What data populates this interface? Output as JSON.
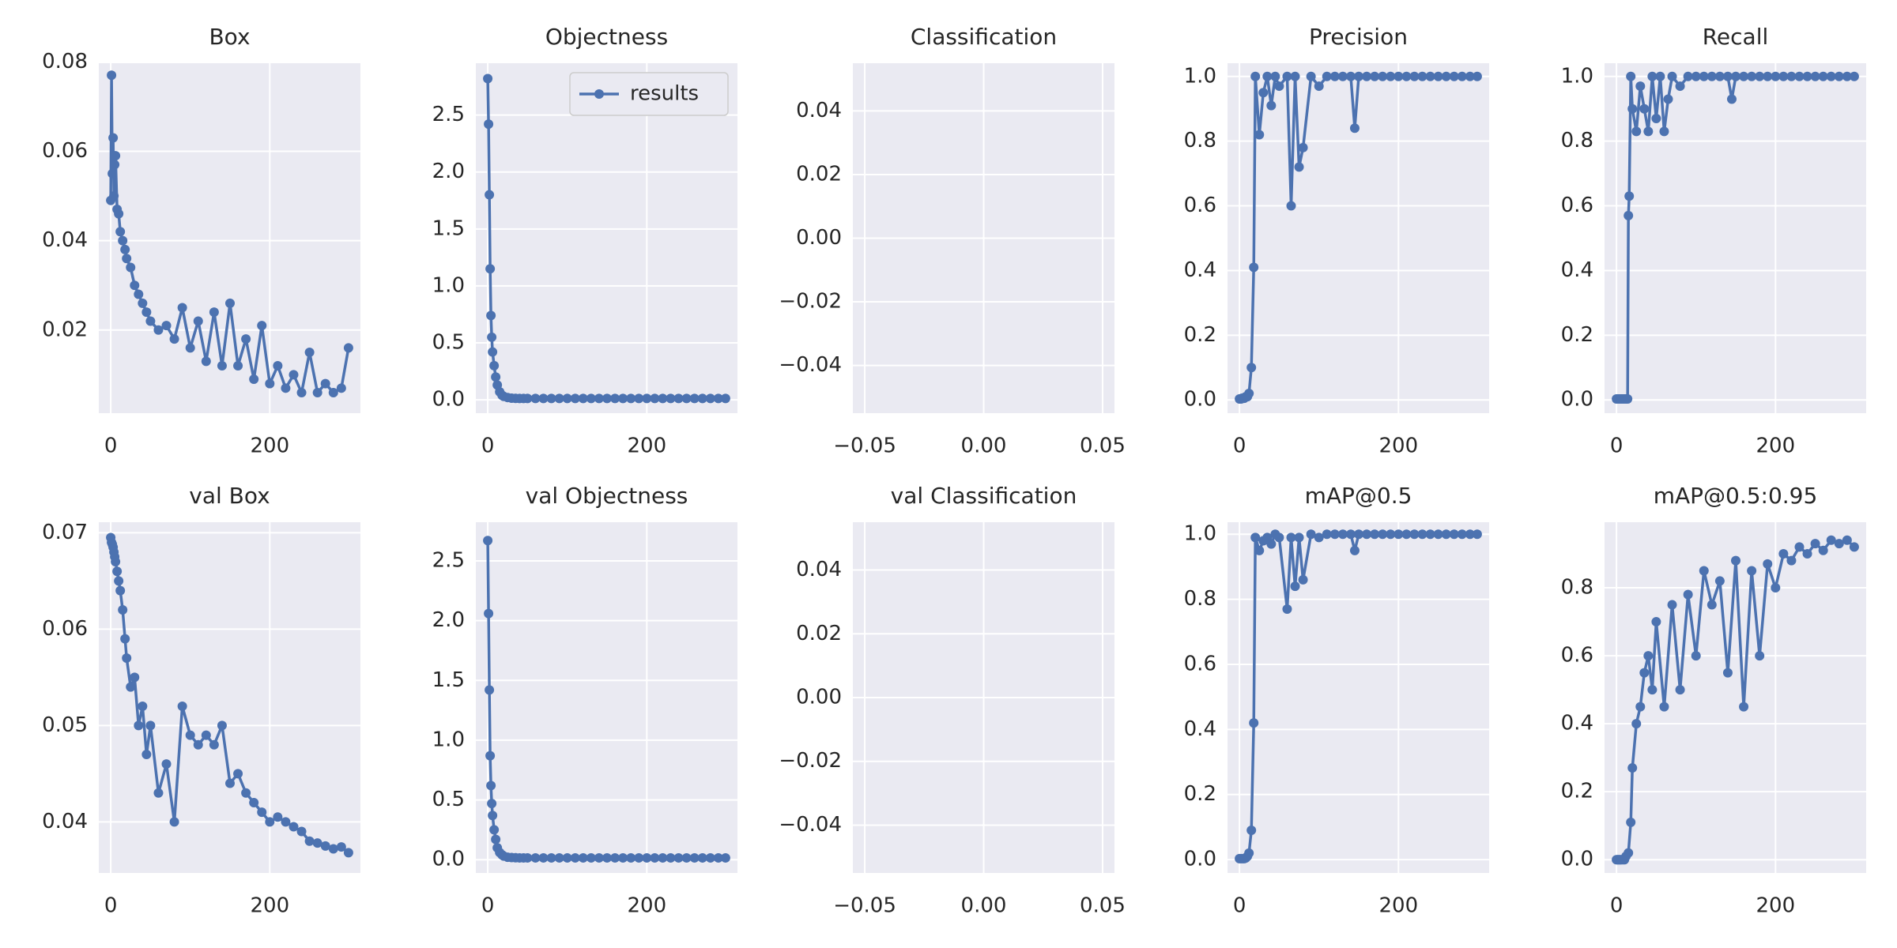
{
  "chart_data": [
    {
      "type": "line",
      "title": "Box",
      "color": "#4c72b0",
      "grid": true,
      "x": [
        0,
        1,
        2,
        3,
        4,
        5,
        6,
        8,
        10,
        12,
        15,
        18,
        20,
        25,
        30,
        35,
        40,
        45,
        50,
        60,
        70,
        80,
        90,
        100,
        110,
        120,
        130,
        140,
        150,
        160,
        170,
        180,
        190,
        200,
        210,
        220,
        230,
        240,
        250,
        260,
        270,
        280,
        290,
        299
      ],
      "values": [
        0.049,
        0.077,
        0.055,
        0.063,
        0.05,
        0.057,
        0.059,
        0.047,
        0.046,
        0.042,
        0.04,
        0.038,
        0.036,
        0.034,
        0.03,
        0.028,
        0.026,
        0.024,
        0.022,
        0.02,
        0.021,
        0.018,
        0.025,
        0.016,
        0.022,
        0.013,
        0.024,
        0.012,
        0.026,
        0.012,
        0.018,
        0.009,
        0.021,
        0.008,
        0.012,
        0.007,
        0.01,
        0.006,
        0.015,
        0.006,
        0.008,
        0.006,
        0.007,
        0.016
      ],
      "xlim": [
        -15,
        314
      ],
      "xticks": [
        0,
        200
      ],
      "ylim": [
        0.0014,
        0.0797
      ],
      "yticks": [
        0.02,
        0.04,
        0.06,
        0.08
      ]
    },
    {
      "type": "line",
      "title": "Objectness",
      "color": "#4c72b0",
      "grid": true,
      "legend": {
        "label": "results",
        "loc": "upper right"
      },
      "x": [
        0,
        1,
        2,
        3,
        4,
        5,
        6,
        8,
        10,
        12,
        15,
        18,
        20,
        25,
        30,
        35,
        40,
        45,
        50,
        60,
        70,
        80,
        90,
        100,
        110,
        120,
        130,
        140,
        150,
        160,
        170,
        180,
        190,
        200,
        210,
        220,
        230,
        240,
        250,
        260,
        270,
        280,
        290,
        299
      ],
      "values": [
        2.82,
        2.42,
        1.8,
        1.15,
        0.74,
        0.55,
        0.42,
        0.3,
        0.2,
        0.13,
        0.07,
        0.04,
        0.03,
        0.02,
        0.015,
        0.013,
        0.012,
        0.012,
        0.012,
        0.012,
        0.012,
        0.012,
        0.012,
        0.012,
        0.012,
        0.012,
        0.012,
        0.012,
        0.012,
        0.012,
        0.012,
        0.012,
        0.012,
        0.012,
        0.012,
        0.012,
        0.012,
        0.012,
        0.012,
        0.012,
        0.012,
        0.012,
        0.012,
        0.012
      ],
      "xlim": [
        -15,
        314
      ],
      "xticks": [
        0,
        200
      ],
      "ylim": [
        -0.117,
        2.955
      ],
      "yticks": [
        {
          "value": 0,
          "label": "0.0"
        },
        0.5,
        {
          "value": 1,
          "label": "1.0"
        },
        1.5,
        {
          "value": 2,
          "label": "2.0"
        },
        2.5
      ]
    },
    {
      "type": "line",
      "title": "Classification",
      "color": "#4c72b0",
      "grid": true,
      "x": [],
      "values": [],
      "xlim": [
        -0.055,
        0.055
      ],
      "xticks": [
        {
          "value": -0.05,
          "label": "−0.05"
        },
        {
          "value": 0,
          "label": "0.00"
        },
        0.05
      ],
      "ylim": [
        -0.055,
        0.055
      ],
      "yticks": [
        {
          "value": -0.04,
          "label": "−0.04"
        },
        {
          "value": -0.02,
          "label": "−0.02"
        },
        {
          "value": 0,
          "label": "0.00"
        },
        0.02,
        0.04
      ]
    },
    {
      "type": "line",
      "title": "Precision",
      "color": "#4c72b0",
      "grid": true,
      "x": [
        0,
        1,
        2,
        3,
        4,
        5,
        6,
        8,
        10,
        12,
        15,
        18,
        20,
        25,
        30,
        35,
        40,
        45,
        50,
        60,
        65,
        70,
        75,
        80,
        90,
        100,
        110,
        120,
        130,
        140,
        145,
        150,
        160,
        170,
        180,
        190,
        200,
        210,
        220,
        230,
        240,
        250,
        260,
        270,
        280,
        290,
        299
      ],
      "values": [
        0.003,
        0.003,
        0.003,
        0.005,
        0.005,
        0.005,
        0.005,
        0.01,
        0.01,
        0.02,
        0.1,
        0.41,
        1.0,
        0.82,
        0.95,
        1.0,
        0.91,
        1.0,
        0.97,
        1.0,
        0.6,
        1.0,
        0.72,
        0.78,
        1.0,
        0.97,
        1.0,
        1.0,
        1.0,
        1.0,
        0.84,
        1.0,
        1.0,
        1.0,
        1.0,
        1.0,
        1.0,
        1.0,
        1.0,
        1.0,
        1.0,
        1.0,
        1.0,
        1.0,
        1.0,
        1.0,
        1.0
      ],
      "xlim": [
        -15,
        314
      ],
      "xticks": [
        0,
        200
      ],
      "ylim": [
        -0.041,
        1.041
      ],
      "yticks": [
        {
          "value": 0,
          "label": "0.0"
        },
        0.2,
        0.4,
        0.6,
        0.8,
        {
          "value": 1,
          "label": "1.0"
        }
      ]
    },
    {
      "type": "line",
      "title": "Recall",
      "color": "#4c72b0",
      "grid": true,
      "x": [
        0,
        2,
        4,
        6,
        8,
        10,
        12,
        14,
        15,
        16,
        18,
        20,
        25,
        30,
        35,
        40,
        45,
        50,
        55,
        60,
        65,
        70,
        80,
        90,
        100,
        110,
        120,
        130,
        140,
        145,
        150,
        160,
        170,
        180,
        190,
        200,
        210,
        220,
        230,
        240,
        250,
        260,
        270,
        280,
        290,
        299
      ],
      "values": [
        0.003,
        0.003,
        0.003,
        0.003,
        0.003,
        0.003,
        0.003,
        0.003,
        0.57,
        0.63,
        1.0,
        0.9,
        0.83,
        0.97,
        0.9,
        0.83,
        1.0,
        0.87,
        1.0,
        0.83,
        0.93,
        1.0,
        0.97,
        1.0,
        1.0,
        1.0,
        1.0,
        1.0,
        1.0,
        0.93,
        1.0,
        1.0,
        1.0,
        1.0,
        1.0,
        1.0,
        1.0,
        1.0,
        1.0,
        1.0,
        1.0,
        1.0,
        1.0,
        1.0,
        1.0,
        1.0
      ],
      "xlim": [
        -15,
        314
      ],
      "xticks": [
        0,
        200
      ],
      "ylim": [
        -0.041,
        1.041
      ],
      "yticks": [
        {
          "value": 0,
          "label": "0.0"
        },
        0.2,
        0.4,
        0.6,
        0.8,
        {
          "value": 1,
          "label": "1.0"
        }
      ]
    },
    {
      "type": "line",
      "title": "val Box",
      "color": "#4c72b0",
      "grid": true,
      "x": [
        0,
        1,
        2,
        3,
        4,
        5,
        6,
        8,
        10,
        12,
        15,
        18,
        20,
        25,
        30,
        35,
        40,
        45,
        50,
        60,
        70,
        80,
        90,
        100,
        110,
        120,
        130,
        140,
        150,
        160,
        170,
        180,
        190,
        200,
        210,
        220,
        230,
        240,
        250,
        260,
        270,
        280,
        290,
        299
      ],
      "values": [
        0.0695,
        0.069,
        0.0688,
        0.0685,
        0.068,
        0.0675,
        0.067,
        0.066,
        0.065,
        0.064,
        0.062,
        0.059,
        0.057,
        0.054,
        0.055,
        0.05,
        0.052,
        0.047,
        0.05,
        0.043,
        0.046,
        0.04,
        0.052,
        0.049,
        0.048,
        0.049,
        0.048,
        0.05,
        0.044,
        0.045,
        0.043,
        0.042,
        0.041,
        0.04,
        0.0405,
        0.04,
        0.0395,
        0.039,
        0.038,
        0.0378,
        0.0375,
        0.0372,
        0.0374,
        0.0368
      ],
      "xlim": [
        -15,
        314
      ],
      "xticks": [
        0,
        200
      ],
      "ylim": [
        0.0347,
        0.0711
      ],
      "yticks": [
        0.04,
        0.05,
        0.06,
        0.07
      ]
    },
    {
      "type": "line",
      "title": "val Objectness",
      "color": "#4c72b0",
      "grid": true,
      "x": [
        0,
        1,
        2,
        3,
        4,
        5,
        6,
        8,
        10,
        12,
        15,
        18,
        20,
        25,
        30,
        35,
        40,
        45,
        50,
        60,
        70,
        80,
        90,
        100,
        110,
        120,
        130,
        140,
        150,
        160,
        170,
        180,
        190,
        200,
        210,
        220,
        230,
        240,
        250,
        260,
        270,
        280,
        290,
        299
      ],
      "values": [
        2.67,
        2.06,
        1.42,
        0.87,
        0.62,
        0.47,
        0.37,
        0.25,
        0.17,
        0.1,
        0.06,
        0.04,
        0.03,
        0.02,
        0.018,
        0.016,
        0.015,
        0.015,
        0.015,
        0.015,
        0.015,
        0.015,
        0.015,
        0.015,
        0.015,
        0.015,
        0.015,
        0.015,
        0.015,
        0.015,
        0.015,
        0.015,
        0.015,
        0.015,
        0.015,
        0.015,
        0.015,
        0.015,
        0.015,
        0.015,
        0.015,
        0.015,
        0.015,
        0.015
      ],
      "xlim": [
        -15,
        314
      ],
      "xticks": [
        0,
        200
      ],
      "ylim": [
        -0.111,
        2.824
      ],
      "yticks": [
        {
          "value": 0,
          "label": "0.0"
        },
        0.5,
        {
          "value": 1,
          "label": "1.0"
        },
        1.5,
        {
          "value": 2,
          "label": "2.0"
        },
        2.5
      ]
    },
    {
      "type": "line",
      "title": "val Classification",
      "color": "#4c72b0",
      "grid": true,
      "x": [],
      "values": [],
      "xlim": [
        -0.055,
        0.055
      ],
      "xticks": [
        {
          "value": -0.05,
          "label": "−0.05"
        },
        {
          "value": 0,
          "label": "0.00"
        },
        0.05
      ],
      "ylim": [
        -0.055,
        0.055
      ],
      "yticks": [
        {
          "value": -0.04,
          "label": "−0.04"
        },
        {
          "value": -0.02,
          "label": "−0.02"
        },
        {
          "value": 0,
          "label": "0.00"
        },
        0.02,
        0.04
      ]
    },
    {
      "type": "line",
      "title": "mAP@0.5",
      "color": "#4c72b0",
      "grid": true,
      "x": [
        0,
        2,
        4,
        6,
        8,
        10,
        12,
        15,
        18,
        20,
        25,
        30,
        35,
        40,
        45,
        50,
        60,
        65,
        70,
        75,
        80,
        90,
        100,
        110,
        120,
        130,
        140,
        145,
        150,
        160,
        170,
        180,
        190,
        200,
        210,
        220,
        230,
        240,
        250,
        260,
        270,
        280,
        290,
        299
      ],
      "values": [
        0.003,
        0.003,
        0.003,
        0.003,
        0.005,
        0.01,
        0.02,
        0.09,
        0.42,
        0.99,
        0.95,
        0.98,
        0.99,
        0.97,
        1.0,
        0.99,
        0.77,
        0.99,
        0.84,
        0.99,
        0.86,
        1.0,
        0.99,
        1.0,
        1.0,
        1.0,
        1.0,
        0.95,
        1.0,
        1.0,
        1.0,
        1.0,
        1.0,
        1.0,
        1.0,
        1.0,
        1.0,
        1.0,
        1.0,
        1.0,
        1.0,
        1.0,
        1.0,
        1.0
      ],
      "xlim": [
        -15,
        314
      ],
      "xticks": [
        0,
        200
      ],
      "ylim": [
        -0.041,
        1.037
      ],
      "yticks": [
        {
          "value": 0,
          "label": "0.0"
        },
        0.2,
        0.4,
        0.6,
        0.8,
        {
          "value": 1,
          "label": "1.0"
        }
      ]
    },
    {
      "type": "line",
      "title": "mAP@0.5:0.95",
      "color": "#4c72b0",
      "grid": true,
      "x": [
        0,
        1,
        2,
        3,
        4,
        5,
        6,
        8,
        10,
        12,
        15,
        18,
        20,
        25,
        30,
        35,
        40,
        45,
        50,
        60,
        70,
        80,
        90,
        100,
        110,
        120,
        130,
        140,
        150,
        160,
        170,
        180,
        190,
        200,
        210,
        220,
        230,
        240,
        250,
        260,
        270,
        280,
        290,
        299
      ],
      "values": [
        0.0,
        0.0,
        0.0,
        0.0,
        0.0,
        0.0,
        0.0,
        0.0,
        0.0,
        0.01,
        0.02,
        0.11,
        0.27,
        0.4,
        0.45,
        0.55,
        0.6,
        0.5,
        0.7,
        0.45,
        0.75,
        0.5,
        0.78,
        0.6,
        0.85,
        0.75,
        0.82,
        0.55,
        0.88,
        0.45,
        0.85,
        0.6,
        0.87,
        0.8,
        0.9,
        0.88,
        0.92,
        0.9,
        0.93,
        0.91,
        0.94,
        0.93,
        0.94,
        0.92
      ],
      "xlim": [
        -15,
        314
      ],
      "xticks": [
        0,
        200
      ],
      "ylim": [
        -0.039,
        0.993
      ],
      "yticks": [
        {
          "value": 0,
          "label": "0.0"
        },
        0.2,
        0.4,
        0.6,
        0.8
      ]
    }
  ]
}
